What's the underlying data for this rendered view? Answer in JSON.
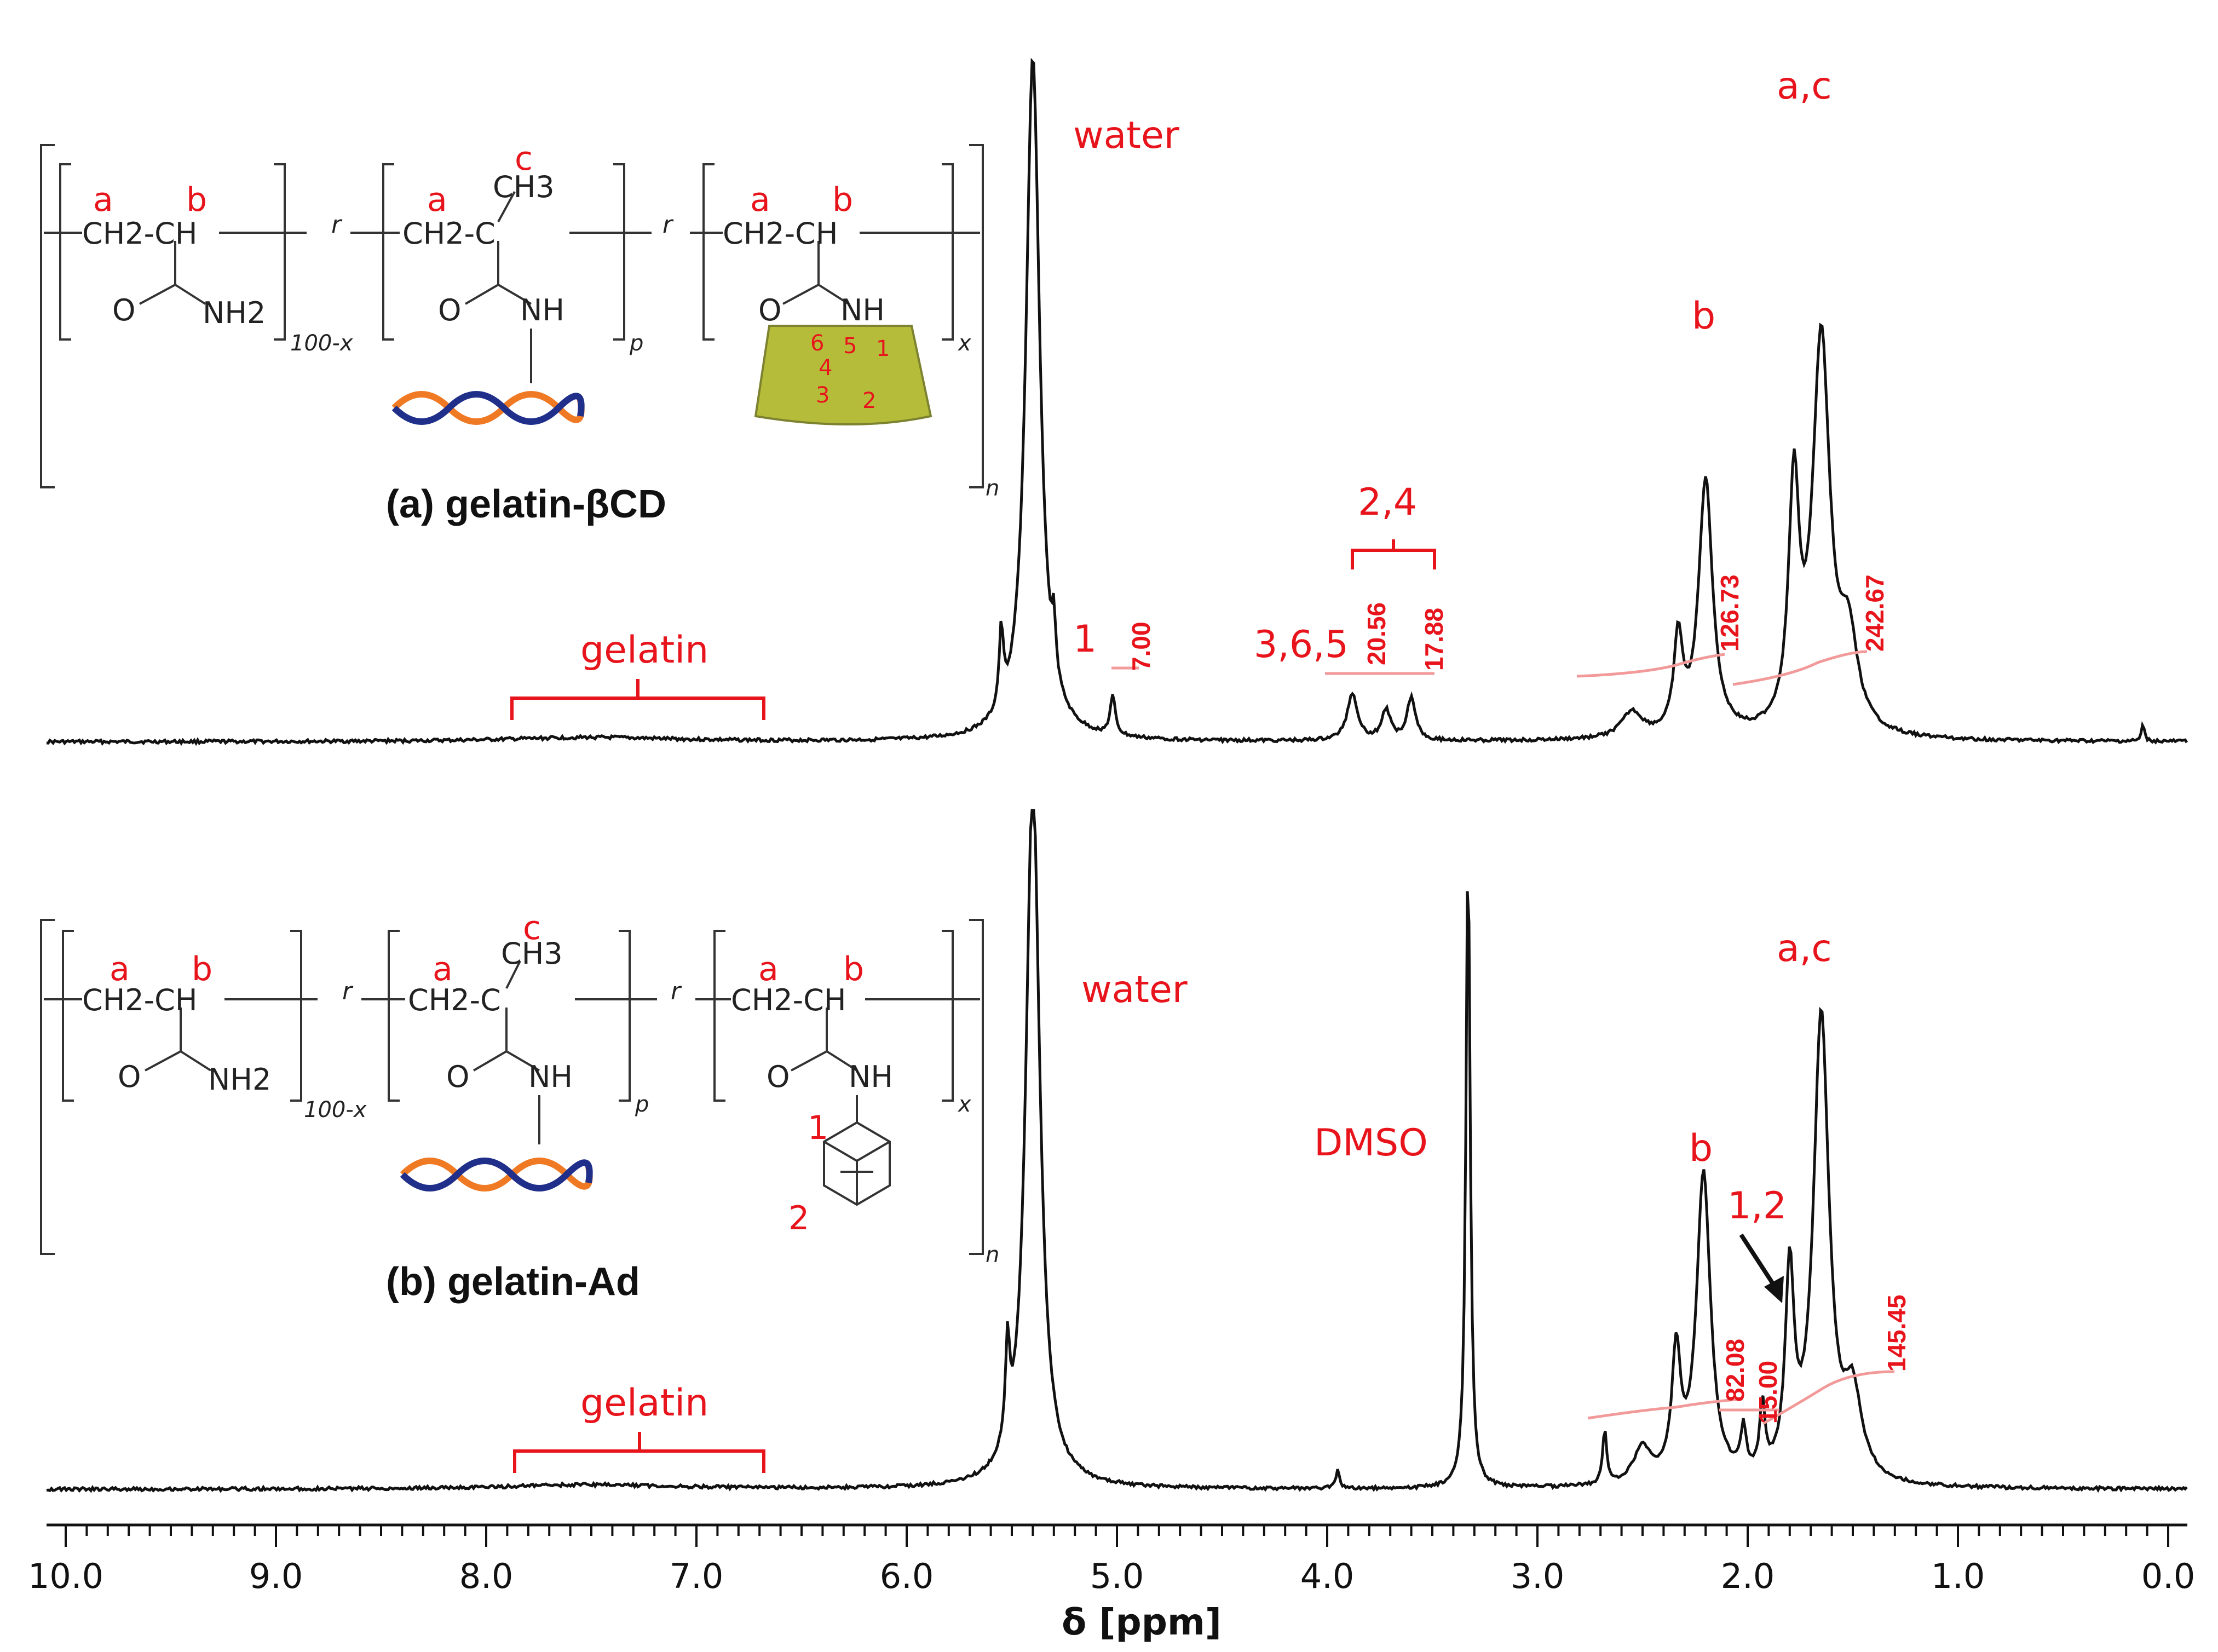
{
  "chart_data": {
    "type": "line",
    "xlabel": "δ  [ppm]",
    "xlim": [
      10.2,
      -0.2
    ],
    "x_ticks": [
      "10.0",
      "9.0",
      "8.0",
      "7.0",
      "6.0",
      "5.0",
      "4.0",
      "3.0",
      "2.0",
      "1.0",
      "0.0"
    ],
    "x_tick_values": [
      10,
      9,
      8,
      7,
      6,
      5,
      4,
      3,
      2,
      1,
      0
    ],
    "spectra": [
      {
        "name": "gelatin-βCD",
        "title": "(a) gelatin-βCD",
        "peaks": [
          {
            "ppm": 5.4,
            "height": 1.6,
            "width": 0.04
          },
          {
            "ppm": 5.55,
            "height": 0.18,
            "width": 0.012
          },
          {
            "ppm": 5.3,
            "height": 0.12,
            "width": 0.01
          },
          {
            "ppm": 5.02,
            "height": 0.09,
            "width": 0.015
          },
          {
            "ppm": 3.88,
            "height": 0.11,
            "width": 0.03
          },
          {
            "ppm": 3.72,
            "height": 0.07,
            "width": 0.025
          },
          {
            "ppm": 3.6,
            "height": 0.1,
            "width": 0.025
          },
          {
            "ppm": 2.55,
            "height": 0.06,
            "width": 0.06
          },
          {
            "ppm": 2.33,
            "height": 0.22,
            "width": 0.025
          },
          {
            "ppm": 2.2,
            "height": 0.6,
            "width": 0.04
          },
          {
            "ppm": 1.78,
            "height": 0.55,
            "width": 0.03
          },
          {
            "ppm": 1.65,
            "height": 0.92,
            "width": 0.05
          },
          {
            "ppm": 1.52,
            "height": 0.2,
            "width": 0.05
          },
          {
            "ppm": 7.5,
            "height": 0.01,
            "width": 0.5
          },
          {
            "ppm": 0.12,
            "height": 0.04,
            "width": 0.008
          }
        ],
        "labels": [
          {
            "text": "water",
            "ppm": 4.95
          },
          {
            "text": "a,c",
            "ppm": 1.65
          },
          {
            "text": "b",
            "ppm": 2.19
          },
          {
            "text": "2,4",
            "ppm": 3.7
          },
          {
            "text": "3,6,5",
            "ppm": 4.15
          },
          {
            "text": "1",
            "ppm": 5.17
          },
          {
            "text": "gelatin",
            "ppm": 7.35
          }
        ],
        "integrals": [
          "7.00",
          "20.56",
          "17.88",
          "126.73",
          "242.67"
        ]
      },
      {
        "name": "gelatin-Ad",
        "title": "(b) gelatin-Ad",
        "peaks": [
          {
            "ppm": 5.4,
            "height": 1.6,
            "width": 0.04
          },
          {
            "ppm": 5.52,
            "height": 0.22,
            "width": 0.012
          },
          {
            "ppm": 3.33,
            "height": 1.45,
            "width": 0.012
          },
          {
            "ppm": 3.95,
            "height": 0.04,
            "width": 0.01
          },
          {
            "ppm": 2.68,
            "height": 0.12,
            "width": 0.012
          },
          {
            "ppm": 2.5,
            "height": 0.08,
            "width": 0.05
          },
          {
            "ppm": 2.34,
            "height": 0.28,
            "width": 0.025
          },
          {
            "ppm": 2.21,
            "height": 0.7,
            "width": 0.04
          },
          {
            "ppm": 2.02,
            "height": 0.1,
            "width": 0.015
          },
          {
            "ppm": 1.93,
            "height": 0.15,
            "width": 0.015
          },
          {
            "ppm": 1.8,
            "height": 0.45,
            "width": 0.025
          },
          {
            "ppm": 1.65,
            "height": 1.05,
            "width": 0.045
          },
          {
            "ppm": 1.5,
            "height": 0.18,
            "width": 0.05
          },
          {
            "ppm": 7.5,
            "height": 0.01,
            "width": 0.5
          }
        ],
        "labels": [
          {
            "text": "water",
            "ppm": 4.95
          },
          {
            "text": "DMSO",
            "ppm": 3.33
          },
          {
            "text": "a,c",
            "ppm": 1.65
          },
          {
            "text": "b",
            "ppm": 2.2
          },
          {
            "text": "1,2",
            "ppm": 1.85
          },
          {
            "text": "gelatin",
            "ppm": 7.35
          }
        ],
        "integrals": [
          "82.08",
          "15.00",
          "145.45"
        ]
      }
    ]
  },
  "structure_a": {
    "title": "(a) gelatin-βCD",
    "site_a": "a",
    "site_b": "b",
    "site_c": "c",
    "ch2_ch": "CH2-CH",
    "ch3": "CH3",
    "ch2_c": "CH2-C",
    "nh2": "NH2",
    "nh": "NH",
    "o": "O",
    "sub_100x": "100-x",
    "sub_p": "p",
    "sub_x": "x",
    "sub_n": "n",
    "sub_r": "r",
    "cd_numbers": [
      "6",
      "5",
      "1",
      "4",
      "3",
      "2"
    ]
  },
  "structure_b": {
    "title": "(b) gelatin-Ad",
    "site_a": "a",
    "site_b": "b",
    "site_c": "c",
    "ad_1": "1",
    "ad_2": "2"
  },
  "colors": {
    "red": "#e8141c",
    "spectrum": "#111111",
    "integral": "#f29a9a",
    "dna_blue": "#1f2f8a",
    "dna_orange": "#f07a24",
    "cd_green": "#b5bc3a"
  }
}
